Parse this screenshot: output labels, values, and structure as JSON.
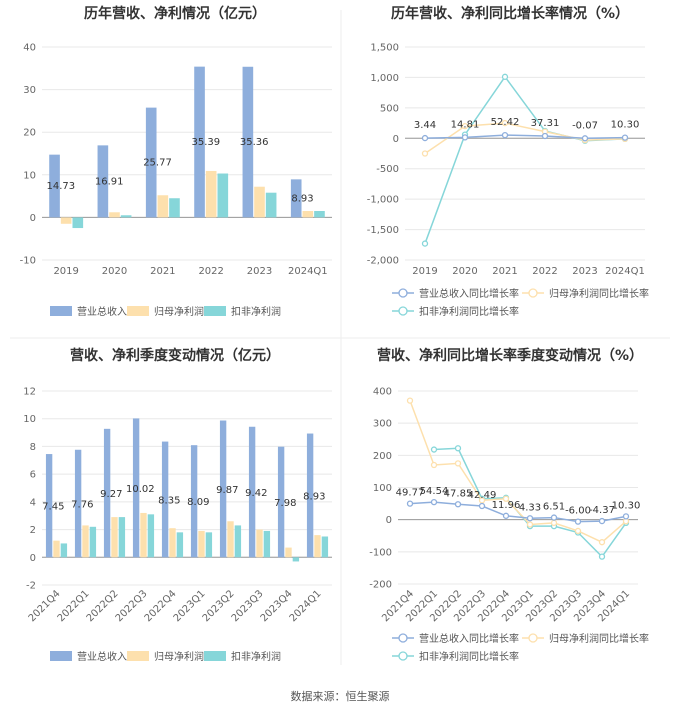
{
  "source_label": "数据来源：恒生聚源",
  "colors": {
    "revenue": "#8eaedc",
    "net_profit": "#fde0ad",
    "deducted_profit": "#86d6d9",
    "grid": "#e8e8e8",
    "axis": "#999999",
    "divider": "#e6e6e6"
  },
  "chart_data": [
    {
      "type": "bar",
      "title": "历年营收、净利情况（亿元）",
      "categories": [
        "2019",
        "2020",
        "2021",
        "2022",
        "2023",
        "2024Q1"
      ],
      "ylim": [
        -10,
        40
      ],
      "yticks": [
        -10,
        0,
        10,
        20,
        30,
        40
      ],
      "series": [
        {
          "name": "营业总收入",
          "color": "#8eaedc",
          "values": [
            14.73,
            16.91,
            25.77,
            35.39,
            35.36,
            8.93
          ],
          "labels": [
            "14.73",
            "16.91",
            "25.77",
            "35.39",
            "35.36",
            "8.93"
          ]
        },
        {
          "name": "归母净利润",
          "color": "#fde0ad",
          "values": [
            -1.5,
            1.2,
            5.2,
            10.9,
            7.2,
            1.5
          ]
        },
        {
          "name": "扣非净利润",
          "color": "#86d6d9",
          "values": [
            -2.5,
            0.5,
            4.5,
            10.3,
            5.8,
            1.5
          ]
        }
      ],
      "legend": "bottom",
      "grid": true
    },
    {
      "type": "line",
      "title": "历年营收、净利同比增长率情况（%）",
      "categories": [
        "2019",
        "2020",
        "2021",
        "2022",
        "2023",
        "2024Q1"
      ],
      "ylim": [
        -2000,
        1500
      ],
      "yticks": [
        -2000,
        -1500,
        -1000,
        -500,
        0,
        500,
        1000,
        1500
      ],
      "series": [
        {
          "name": "营业总收入同比增长率",
          "color": "#8eaedc",
          "values": [
            3.44,
            14.81,
            52.42,
            37.31,
            -0.07,
            10.3
          ],
          "labels": [
            "3.44",
            "14.81",
            "52.42",
            "37.31",
            "-0.07",
            "10.30"
          ]
        },
        {
          "name": "归母净利润同比增长率",
          "color": "#fde0ad",
          "values": [
            -250,
            200,
            250,
            110,
            -30,
            -10
          ]
        },
        {
          "name": "扣非净利润同比增长率",
          "color": "#86d6d9",
          "values": [
            -1730,
            60,
            1010,
            120,
            -40,
            -10
          ]
        }
      ],
      "legend": "bottom",
      "grid": true
    },
    {
      "type": "bar",
      "title": "营收、净利季度变动情况（亿元）",
      "categories": [
        "2021Q4",
        "2022Q1",
        "2022Q2",
        "2022Q3",
        "2022Q4",
        "2023Q1",
        "2023Q2",
        "2023Q3",
        "2023Q4",
        "2024Q1"
      ],
      "ylim": [
        -2,
        12
      ],
      "yticks": [
        -2,
        0,
        2,
        4,
        6,
        8,
        10,
        12
      ],
      "series": [
        {
          "name": "营业总收入",
          "color": "#8eaedc",
          "values": [
            7.45,
            7.76,
            9.27,
            10.02,
            8.35,
            8.09,
            9.87,
            9.42,
            7.98,
            8.93
          ],
          "labels": [
            "7.45",
            "7.76",
            "9.27",
            "10.02",
            "8.35",
            "8.09",
            "9.87",
            "9.42",
            "7.98",
            "8.93"
          ]
        },
        {
          "name": "归母净利润",
          "color": "#fde0ad",
          "values": [
            1.2,
            2.3,
            2.9,
            3.2,
            2.1,
            1.9,
            2.6,
            2.0,
            0.7,
            1.6
          ]
        },
        {
          "name": "扣非净利润",
          "color": "#86d6d9",
          "values": [
            1.0,
            2.2,
            2.9,
            3.1,
            1.8,
            1.8,
            2.3,
            1.9,
            -0.3,
            1.5
          ]
        }
      ],
      "legend": "bottom",
      "grid": true
    },
    {
      "type": "line",
      "title": "营收、净利同比增长率季度变动情况（%）",
      "categories": [
        "2021Q4",
        "2022Q1",
        "2022Q2",
        "2022Q3",
        "2022Q4",
        "2023Q1",
        "2023Q2",
        "2023Q3",
        "2023Q4",
        "2024Q1"
      ],
      "ylim": [
        -200,
        400
      ],
      "yticks": [
        -200,
        -100,
        0,
        100,
        200,
        300,
        400
      ],
      "series": [
        {
          "name": "营业总收入同比增长率",
          "color": "#8eaedc",
          "values": [
            49.77,
            54.54,
            47.85,
            42.49,
            11.96,
            4.33,
            6.51,
            -6.0,
            -4.37,
            10.3
          ],
          "labels": [
            "49.77",
            "54.54",
            "47.85",
            "42.49",
            "11.96",
            "4.33",
            "6.51",
            "-6.00",
            "-4.37",
            "10.30"
          ]
        },
        {
          "name": "归母净利润同比增长率",
          "color": "#fde0ad",
          "values": [
            370,
            170,
            175,
            60,
            65,
            -15,
            -10,
            -35,
            -70,
            -5
          ]
        },
        {
          "name": "扣非净利润同比增长率",
          "color": "#86d6d9",
          "values": [
            null,
            218,
            222,
            65,
            68,
            -20,
            -20,
            -40,
            -115,
            -10
          ]
        }
      ],
      "legend": "bottom",
      "grid": true
    }
  ]
}
